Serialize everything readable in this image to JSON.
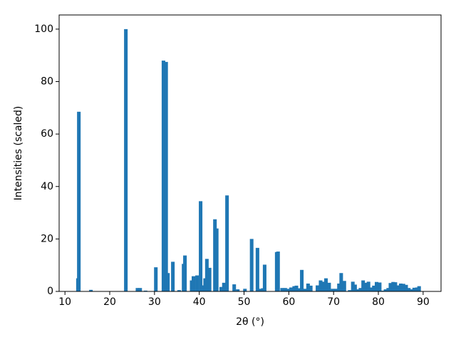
{
  "chart_data": {
    "type": "bar",
    "xlabel": "2θ (°)",
    "ylabel": "Intensities (scaled)",
    "color": "#1f77b4",
    "x": [
      12.9,
      13.1,
      15.8,
      23.6,
      26.2,
      26.8,
      28.0,
      30.3,
      32.0,
      32.6,
      33.0,
      34.1,
      35.5,
      36.5,
      36.8,
      38.3,
      38.7,
      39.5,
      40.3,
      40.7,
      41.3,
      41.7,
      42.3,
      43.5,
      43.9,
      44.9,
      45.5,
      46.2,
      47.8,
      48.6,
      50.2,
      51.7,
      53.0,
      53.6,
      54.2,
      54.6,
      57.3,
      57.6,
      58.5,
      59.2,
      59.8,
      60.5,
      61.2,
      61.7,
      62.3,
      62.9,
      63.6,
      64.3,
      64.9,
      66.4,
      67.1,
      67.7,
      68.3,
      69.0,
      69.8,
      70.5,
      71.2,
      71.7,
      72.4,
      73.6,
      74.3,
      74.8,
      75.5,
      76.0,
      76.6,
      77.2,
      77.8,
      78.4,
      79.0,
      79.6,
      80.3,
      80.9,
      81.6,
      82.2,
      82.7,
      83.3,
      83.8,
      84.4,
      85.0,
      85.6,
      86.2,
      86.8,
      87.4,
      88.0,
      88.6,
      89.1
    ],
    "values": [
      5,
      68.5,
      0.6,
      100,
      1.3,
      1.3,
      0.3,
      9.2,
      88,
      87.5,
      7,
      11.3,
      0.5,
      10.5,
      13.7,
      4.2,
      5.8,
      6.1,
      34.4,
      2.3,
      5,
      12.4,
      9,
      27.5,
      24,
      1.7,
      3.3,
      36.6,
      2.7,
      0.8,
      1,
      20,
      16.6,
      1,
      1.2,
      10.2,
      15,
      15.2,
      1.3,
      1.3,
      1,
      1.5,
      2,
      2.2,
      1.2,
      8.2,
      1,
      3,
      2.2,
      2.3,
      4.2,
      3.7,
      5,
      3.3,
      1,
      1,
      3,
      7,
      4,
      0.5,
      3.7,
      2.6,
      0.8,
      1.3,
      4.2,
      3.3,
      3.7,
      1.5,
      2.2,
      3.6,
      3.4,
      0.3,
      0.8,
      1.3,
      3.2,
      3.6,
      3.5,
      2.3,
      3,
      2.9,
      2.5,
      1.3,
      0.8,
      1.4,
      1.5,
      2
    ],
    "xlim": [
      8.7,
      94
    ],
    "xticks": [
      10,
      20,
      30,
      40,
      50,
      60,
      70,
      80,
      90
    ],
    "ylim": [
      0,
      105.4
    ],
    "yticks": [
      0,
      20,
      40,
      60,
      80,
      100
    ]
  }
}
